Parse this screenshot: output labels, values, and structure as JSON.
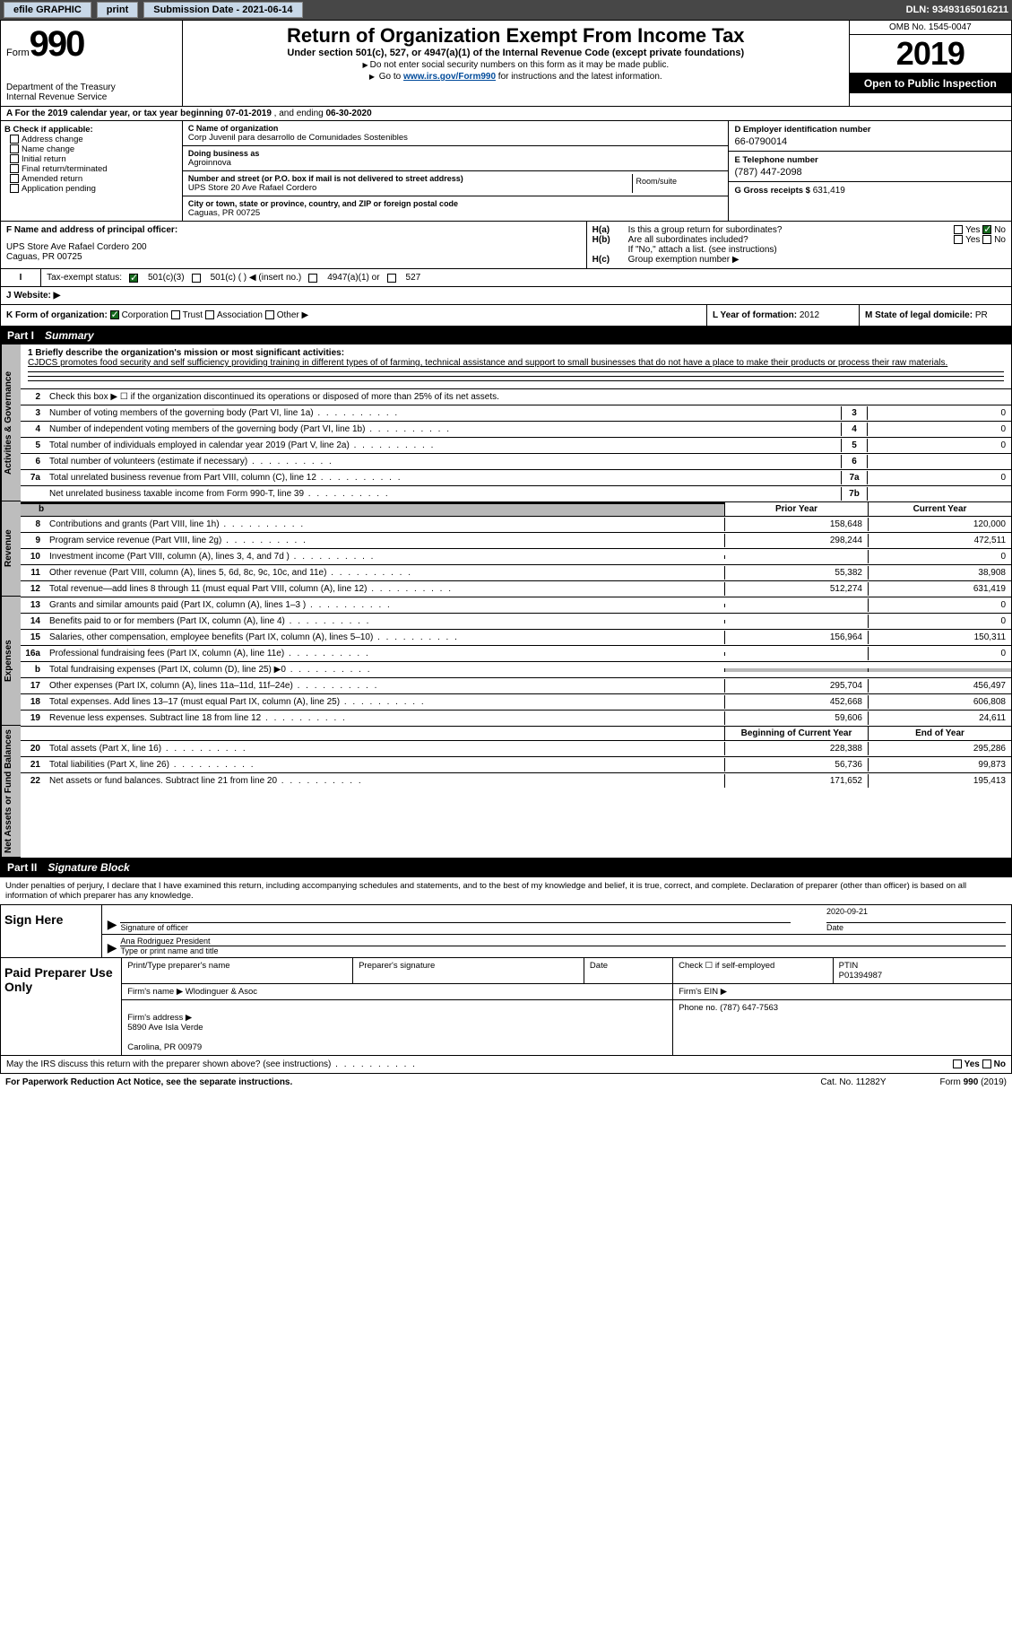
{
  "topbar": {
    "efile": "efile GRAPHIC",
    "print": "print",
    "submission": "Submission Date - 2021-06-14",
    "dln": "DLN: 93493165016211"
  },
  "header": {
    "form_word": "Form",
    "form_num": "990",
    "title": "Return of Organization Exempt From Income Tax",
    "subtitle": "Under section 501(c), 527, or 4947(a)(1) of the Internal Revenue Code (except private foundations)",
    "note1": "Do not enter social security numbers on this form as it may be made public.",
    "note2_pre": "Go to ",
    "note2_link": "www.irs.gov/Form990",
    "note2_post": " for instructions and the latest information.",
    "dept": "Department of the Treasury\nInternal Revenue Service",
    "omb": "OMB No. 1545-0047",
    "year": "2019",
    "inspection": "Open to Public Inspection"
  },
  "period": {
    "prefix": "A For the 2019 calendar year, or tax year beginning ",
    "begin": "07-01-2019",
    "mid": " , and ending ",
    "end": "06-30-2020"
  },
  "B": {
    "hdr": "B Check if applicable:",
    "items": [
      "Address change",
      "Name change",
      "Initial return",
      "Final return/terminated",
      "Amended return",
      "Application pending"
    ]
  },
  "C": {
    "name_lbl": "C Name of organization",
    "name": "Corp Juvenil para desarrollo de Comunidades Sostenibles",
    "dba_lbl": "Doing business as",
    "dba": "Agroinnova",
    "addr_lbl": "Number and street (or P.O. box if mail is not delivered to street address)",
    "addr": "UPS Store 20 Ave Rafael Cordero",
    "room_lbl": "Room/suite",
    "city_lbl": "City or town, state or province, country, and ZIP or foreign postal code",
    "city": "Caguas, PR  00725"
  },
  "D": {
    "lbl": "D Employer identification number",
    "val": "66-0790014"
  },
  "E": {
    "lbl": "E Telephone number",
    "val": "(787) 447-2098"
  },
  "G": {
    "lbl": "G Gross receipts $",
    "val": "631,419"
  },
  "F": {
    "lbl": "F  Name and address of principal officer:",
    "val": "UPS Store Ave Rafael Cordero 200\nCaguas, PR  00725"
  },
  "H": {
    "a_lbl": "H(a)",
    "a_txt": "Is this a group return for subordinates?",
    "b_lbl": "H(b)",
    "b_txt": "Are all subordinates included?",
    "b_note": "If \"No,\" attach a list. (see instructions)",
    "c_lbl": "H(c)",
    "c_txt": "Group exemption number ▶",
    "yes": "Yes",
    "no": "No"
  },
  "I": {
    "lbl": "Tax-exempt status:",
    "opts": [
      "501(c)(3)",
      "501(c) (  )  ◀ (insert no.)",
      "4947(a)(1) or",
      "527"
    ]
  },
  "J": {
    "lbl": "J    Website: ▶"
  },
  "K": {
    "lbl": "K Form of organization:",
    "opts": [
      "Corporation",
      "Trust",
      "Association",
      "Other ▶"
    ]
  },
  "L": {
    "lbl": "L Year of formation:",
    "val": "2012"
  },
  "M": {
    "lbl": "M State of legal domicile:",
    "val": "PR"
  },
  "part1": {
    "num": "Part I",
    "title": "Summary"
  },
  "summary": {
    "briefly_lbl": "1  Briefly describe the organization's mission or most significant activities:",
    "briefly": "CJDCS promotes food security and self sufficiency providing training in different types of of farming, technical assistance and support to small businesses that do not have a place to make their products or process their raw materials.",
    "line2": "Check this box ▶ ☐  if the organization discontinued its operations or disposed of more than 25% of its net assets.",
    "sections": {
      "gov": "Activities & Governance",
      "rev": "Revenue",
      "exp": "Expenses",
      "net": "Net Assets or Fund Balances"
    },
    "hdr_prior": "Prior Year",
    "hdr_current": "Current Year",
    "hdr_begin": "Beginning of Current Year",
    "hdr_end": "End of Year",
    "gov_rows": [
      {
        "n": "3",
        "t": "Number of voting members of the governing body (Part VI, line 1a)",
        "k": "3",
        "v": "0"
      },
      {
        "n": "4",
        "t": "Number of independent voting members of the governing body (Part VI, line 1b)",
        "k": "4",
        "v": "0"
      },
      {
        "n": "5",
        "t": "Total number of individuals employed in calendar year 2019 (Part V, line 2a)",
        "k": "5",
        "v": "0"
      },
      {
        "n": "6",
        "t": "Total number of volunteers (estimate if necessary)",
        "k": "6",
        "v": ""
      },
      {
        "n": "7a",
        "t": "Total unrelated business revenue from Part VIII, column (C), line 12",
        "k": "7a",
        "v": "0"
      },
      {
        "n": "",
        "t": "Net unrelated business taxable income from Form 990-T, line 39",
        "k": "7b",
        "v": ""
      }
    ],
    "rev_rows": [
      {
        "n": "8",
        "t": "Contributions and grants (Part VIII, line 1h)",
        "p": "158,648",
        "c": "120,000"
      },
      {
        "n": "9",
        "t": "Program service revenue (Part VIII, line 2g)",
        "p": "298,244",
        "c": "472,511"
      },
      {
        "n": "10",
        "t": "Investment income (Part VIII, column (A), lines 3, 4, and 7d )",
        "p": "",
        "c": "0"
      },
      {
        "n": "11",
        "t": "Other revenue (Part VIII, column (A), lines 5, 6d, 8c, 9c, 10c, and 11e)",
        "p": "55,382",
        "c": "38,908"
      },
      {
        "n": "12",
        "t": "Total revenue—add lines 8 through 11 (must equal Part VIII, column (A), line 12)",
        "p": "512,274",
        "c": "631,419"
      }
    ],
    "exp_rows": [
      {
        "n": "13",
        "t": "Grants and similar amounts paid (Part IX, column (A), lines 1–3 )",
        "p": "",
        "c": "0"
      },
      {
        "n": "14",
        "t": "Benefits paid to or for members (Part IX, column (A), line 4)",
        "p": "",
        "c": "0"
      },
      {
        "n": "15",
        "t": "Salaries, other compensation, employee benefits (Part IX, column (A), lines 5–10)",
        "p": "156,964",
        "c": "150,311"
      },
      {
        "n": "16a",
        "t": "Professional fundraising fees (Part IX, column (A), line 11e)",
        "p": "",
        "c": "0"
      },
      {
        "n": "b",
        "t": "Total fundraising expenses (Part IX, column (D), line 25) ▶0",
        "p": "GREY",
        "c": "GREY"
      },
      {
        "n": "17",
        "t": "Other expenses (Part IX, column (A), lines 11a–11d, 11f–24e)",
        "p": "295,704",
        "c": "456,497"
      },
      {
        "n": "18",
        "t": "Total expenses. Add lines 13–17 (must equal Part IX, column (A), line 25)",
        "p": "452,668",
        "c": "606,808"
      },
      {
        "n": "19",
        "t": "Revenue less expenses. Subtract line 18 from line 12",
        "p": "59,606",
        "c": "24,611"
      }
    ],
    "net_rows": [
      {
        "n": "20",
        "t": "Total assets (Part X, line 16)",
        "p": "228,388",
        "c": "295,286"
      },
      {
        "n": "21",
        "t": "Total liabilities (Part X, line 26)",
        "p": "56,736",
        "c": "99,873"
      },
      {
        "n": "22",
        "t": "Net assets or fund balances. Subtract line 21 from line 20",
        "p": "171,652",
        "c": "195,413"
      }
    ]
  },
  "part2": {
    "num": "Part II",
    "title": "Signature Block"
  },
  "sig": {
    "intro": "Under penalties of perjury, I declare that I have examined this return, including accompanying schedules and statements, and to the best of my knowledge and belief, it is true, correct, and complete. Declaration of preparer (other than officer) is based on all information of which preparer has any knowledge.",
    "sign_here": "Sign Here",
    "sig_officer": "Signature of officer",
    "date": "Date",
    "date_val": "2020-09-21",
    "name": "Ana Rodriguez  President",
    "name_lbl": "Type or print name and title"
  },
  "paid": {
    "hdr": "Paid Preparer Use Only",
    "print_lbl": "Print/Type preparer's name",
    "sig_lbl": "Preparer's signature",
    "date_lbl": "Date",
    "check_lbl": "Check ☐ if self-employed",
    "ptin_lbl": "PTIN",
    "ptin": "P01394987",
    "firm_name_lbl": "Firm's name    ▶",
    "firm_name": "Wlodinguer & Asoc",
    "firm_ein_lbl": "Firm's EIN ▶",
    "firm_addr_lbl": "Firm's address ▶",
    "firm_addr": "5890 Ave Isla Verde\n\nCarolina, PR  00979",
    "phone_lbl": "Phone no.",
    "phone": "(787) 647-7563"
  },
  "discuss": {
    "txt": "May the IRS discuss this return with the preparer shown above? (see instructions)",
    "yes": "Yes",
    "no": "No"
  },
  "footer": {
    "left": "For Paperwork Reduction Act Notice, see the separate instructions.",
    "mid": "Cat. No. 11282Y",
    "right_pre": "Form ",
    "right_b": "990",
    "right_post": " (2019)"
  },
  "b_row_t": "b"
}
